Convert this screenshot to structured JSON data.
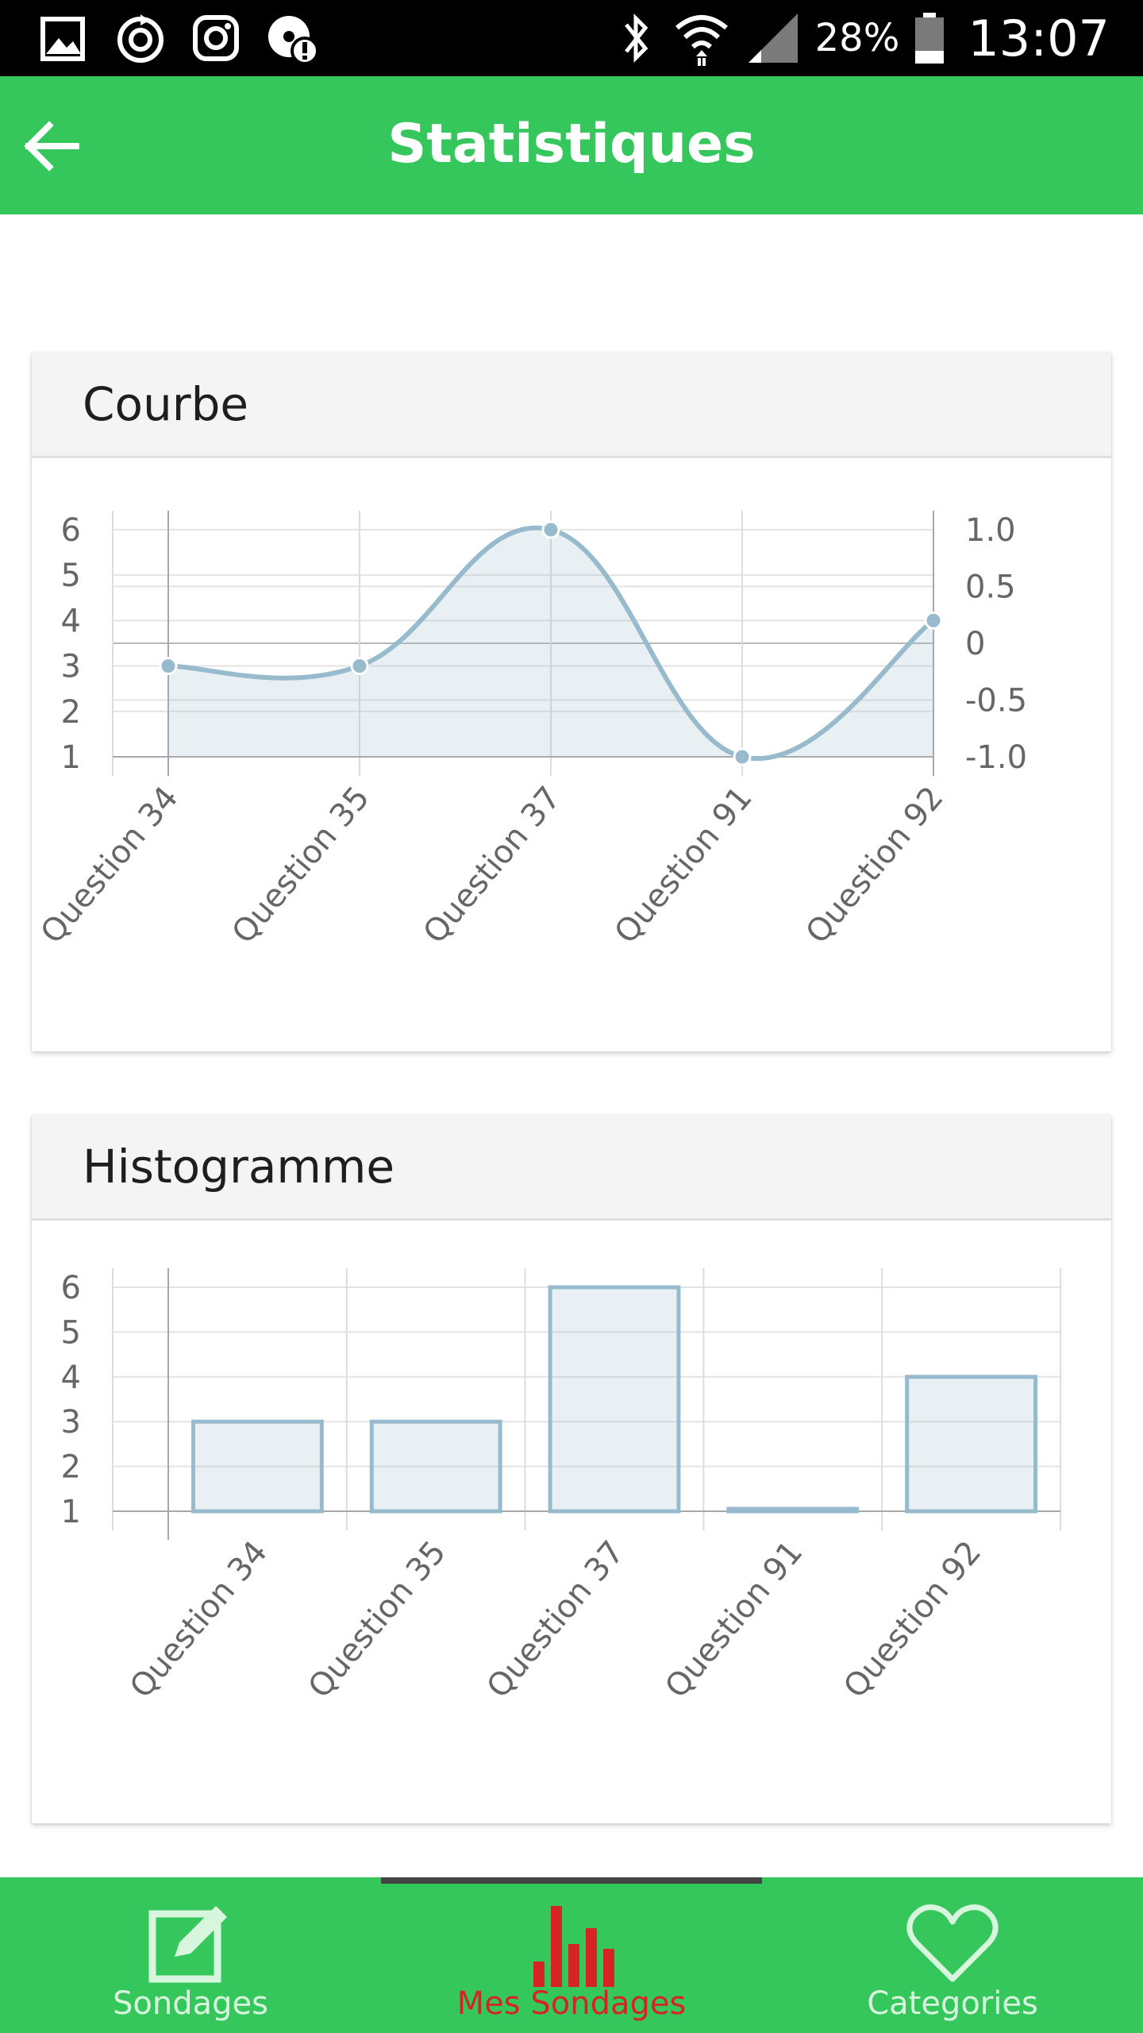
{
  "status_bar": {
    "battery": "28%",
    "time": "13:07",
    "left_icons": [
      "gallery-icon",
      "sync-icon",
      "instagram-icon",
      "disk-alert-icon"
    ],
    "right_icons": [
      "bluetooth-icon",
      "wifi-icon",
      "signal-icon",
      "battery-icon"
    ]
  },
  "app_bar": {
    "title": "Statistiques",
    "back_icon": "arrow-left-icon",
    "color": "#35c75c"
  },
  "cards": [
    {
      "title": "Courbe"
    },
    {
      "title": "Histogramme"
    }
  ],
  "chart_data": [
    {
      "type": "line",
      "title": "Courbe",
      "categories": [
        "Question 34",
        "Question 35",
        "Question 37",
        "Question 91",
        "Question 92"
      ],
      "values": [
        3,
        3,
        6,
        1,
        4
      ],
      "ylim": [
        1,
        6
      ],
      "y_ticks": [
        "6",
        "5",
        "4",
        "3",
        "2",
        "1"
      ],
      "secondary_ylim": [
        -1.0,
        1.0
      ],
      "secondary_y_ticks": [
        "1.0",
        "0.5",
        "0",
        "-0.5",
        "-1.0"
      ],
      "smooth": true,
      "filled": true,
      "grid": true,
      "color": "#97bbcd"
    },
    {
      "type": "bar",
      "title": "Histogramme",
      "categories": [
        "Question 34",
        "Question 35",
        "Question 37",
        "Question 91",
        "Question 92"
      ],
      "values": [
        3,
        3,
        6,
        1,
        4
      ],
      "ylim": [
        1,
        6
      ],
      "y_ticks": [
        "6",
        "5",
        "4",
        "3",
        "2",
        "1"
      ],
      "grid": true,
      "color": "#97bbcd"
    }
  ],
  "bottom_nav": {
    "items": [
      {
        "label": "Sondages",
        "icon": "edit-icon",
        "active": false
      },
      {
        "label": "Mes Sondages",
        "icon": "bar-chart-icon",
        "active": true
      },
      {
        "label": "Categories",
        "icon": "heart-icon",
        "active": false
      }
    ],
    "active_color": "#d42424"
  }
}
